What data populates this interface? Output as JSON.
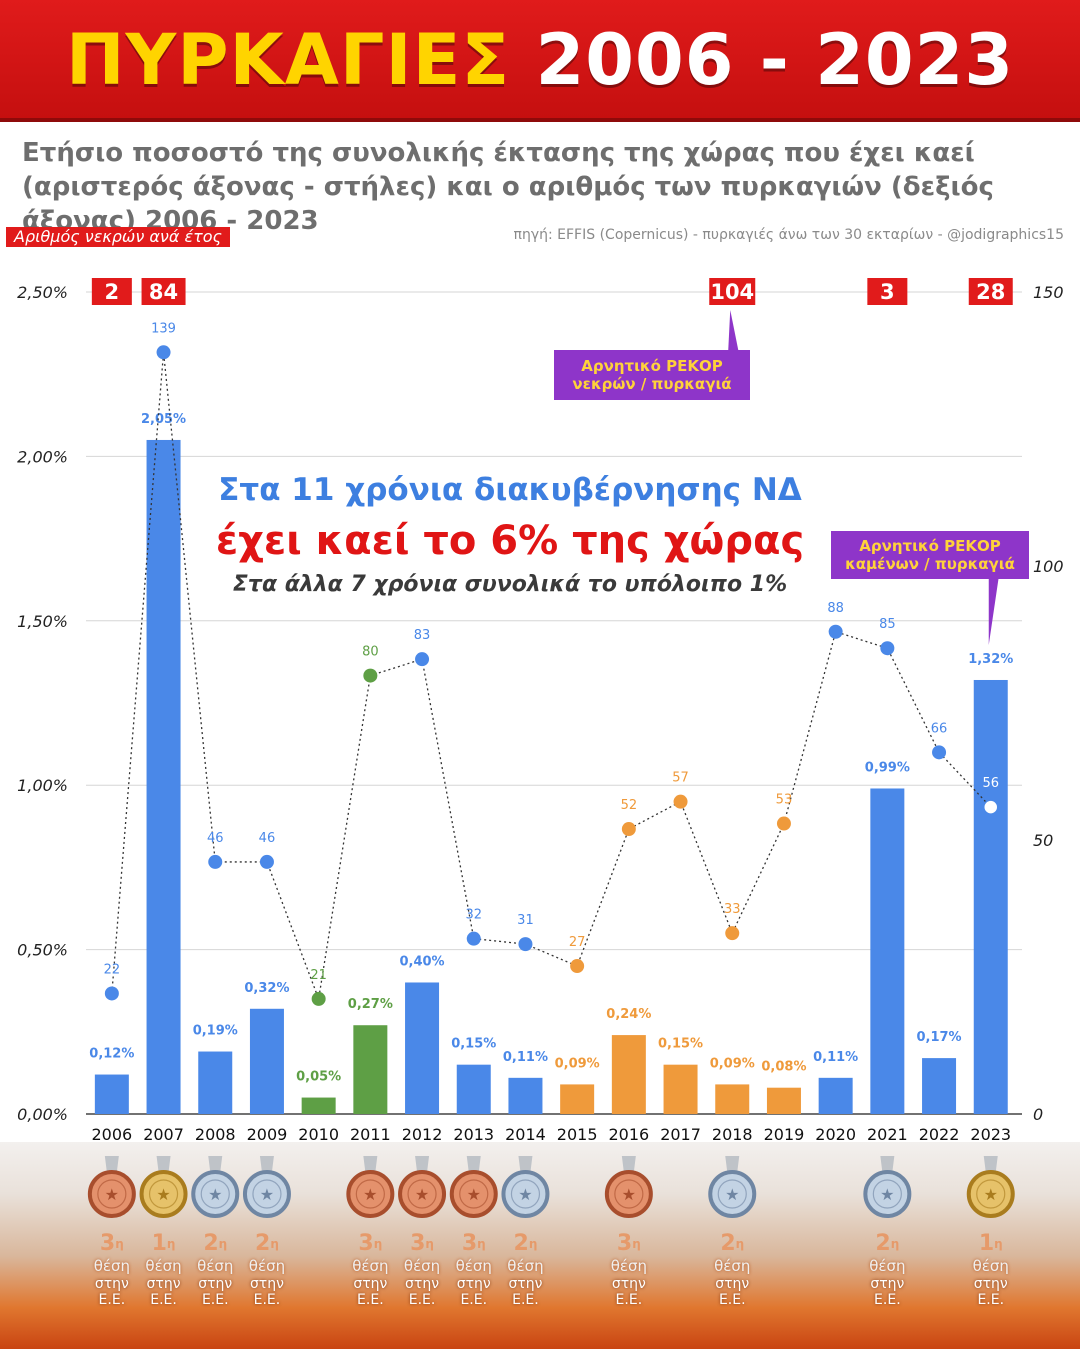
{
  "header": {
    "title_part1": "ΠΥΡΚΑΓΙΕΣ",
    "title_part2": "2006 - 2023",
    "subtitle": "Ετήσιο ποσοστό της συνολικής έκτασης της χώρας που έχει καεί (αριστερός άξονας - στήλες) και ο αριθμός των πυρκαγιών (δεξιός άξονας) 2006 - 2023",
    "deaths_label": "Αριθμός νεκρών ανά έτος",
    "source": "πηγή: EFFIS (Copernicus) - πυρκαγιές άνω των 30 εκταρίων - @jodigraphics15"
  },
  "headline": {
    "line1": "Στα 11 χρόνια διακυβέρνησης ΝΔ",
    "line2": "έχει καεί το 6% της χώρας",
    "line3": "Στα άλλα 7 χρόνια συνολικά το υπόλοιπο 1%"
  },
  "annotations": {
    "record_deaths": "Αρνητικό ΡΕΚΟΡ νεκρών / πυρκαγιά",
    "record_burned": "Αρνητικό ΡΕΚΟΡ καμένων / πυρκαγιά"
  },
  "colors": {
    "blue": "#4a88e8",
    "green": "#5e9f45",
    "orange": "#ef9a3b",
    "red": "#e11b1b",
    "purple": "#8e35c9"
  },
  "chart_data": {
    "type": "bar",
    "categories": [
      "2006",
      "2007",
      "2008",
      "2009",
      "2010",
      "2011",
      "2012",
      "2013",
      "2014",
      "2015",
      "2016",
      "2017",
      "2018",
      "2019",
      "2020",
      "2021",
      "2022",
      "2023"
    ],
    "bar_values": [
      0.12,
      2.05,
      0.19,
      0.32,
      0.05,
      0.27,
      0.4,
      0.15,
      0.11,
      0.09,
      0.24,
      0.15,
      0.09,
      0.08,
      0.11,
      0.99,
      0.17,
      1.32
    ],
    "bar_labels": [
      "0,12%",
      "2,05%",
      "0,19%",
      "0,32%",
      "0,05%",
      "0,27%",
      "0,40%",
      "0,15%",
      "0,11%",
      "0,09%",
      "0,24%",
      "0,15%",
      "0,09%",
      "0,08%",
      "0,11%",
      "0,99%",
      "0,17%",
      "1,32%"
    ],
    "fires": [
      22,
      139,
      46,
      46,
      21,
      80,
      83,
      32,
      31,
      27,
      52,
      57,
      33,
      53,
      88,
      85,
      66,
      56
    ],
    "color_groups": [
      "blue",
      "blue",
      "blue",
      "blue",
      "green",
      "green",
      "blue",
      "blue",
      "blue",
      "orange",
      "orange",
      "orange",
      "orange",
      "orange",
      "blue",
      "blue",
      "blue",
      "blue"
    ],
    "deaths": [
      {
        "year": "2006",
        "value": "2"
      },
      {
        "year": "2007",
        "value": "84"
      },
      {
        "year": "2018",
        "value": "104"
      },
      {
        "year": "2021",
        "value": "3"
      },
      {
        "year": "2023",
        "value": "28"
      }
    ],
    "y_left": {
      "range": [
        0,
        2.5
      ],
      "ticks": [
        "0,00%",
        "0,50%",
        "1,00%",
        "1,50%",
        "2,00%",
        "2,50%"
      ]
    },
    "y_right": {
      "range": [
        0,
        150
      ],
      "ticks": [
        "0",
        "50",
        "100",
        "150"
      ]
    },
    "grid": true
  },
  "medals": [
    {
      "year": "2006",
      "type": "bronze",
      "rank": "3",
      "sup": "η",
      "place": "θέση",
      "in": "στην",
      "eu": "Ε.Ε."
    },
    {
      "year": "2007",
      "type": "gold",
      "rank": "1",
      "sup": "η",
      "place": "θέση",
      "in": "στην",
      "eu": "Ε.Ε."
    },
    {
      "year": "2008",
      "type": "silver",
      "rank": "2",
      "sup": "η",
      "place": "θέση",
      "in": "στην",
      "eu": "Ε.Ε."
    },
    {
      "year": "2009",
      "type": "silver",
      "rank": "2",
      "sup": "η",
      "place": "θέση",
      "in": "στην",
      "eu": "Ε.Ε."
    },
    {
      "year": "2011",
      "type": "bronze",
      "rank": "3",
      "sup": "η",
      "place": "θέση",
      "in": "στην",
      "eu": "Ε.Ε."
    },
    {
      "year": "2012",
      "type": "bronze",
      "rank": "3",
      "sup": "η",
      "place": "θέση",
      "in": "στην",
      "eu": "Ε.Ε."
    },
    {
      "year": "2013",
      "type": "bronze",
      "rank": "3",
      "sup": "η",
      "place": "θέση",
      "in": "στην",
      "eu": "Ε.Ε."
    },
    {
      "year": "2014",
      "type": "silver",
      "rank": "2",
      "sup": "η",
      "place": "θέση",
      "in": "στην",
      "eu": "Ε.Ε."
    },
    {
      "year": "2016",
      "type": "bronze",
      "rank": "3",
      "sup": "η",
      "place": "θέση",
      "in": "στην",
      "eu": "Ε.Ε."
    },
    {
      "year": "2018",
      "type": "silver",
      "rank": "2",
      "sup": "η",
      "place": "θέση",
      "in": "στην",
      "eu": "Ε.Ε."
    },
    {
      "year": "2021",
      "type": "silver",
      "rank": "2",
      "sup": "η",
      "place": "θέση",
      "in": "στην",
      "eu": "Ε.Ε."
    },
    {
      "year": "2023",
      "type": "gold",
      "rank": "1",
      "sup": "η",
      "place": "θέση",
      "in": "στην",
      "eu": "Ε.Ε."
    }
  ]
}
